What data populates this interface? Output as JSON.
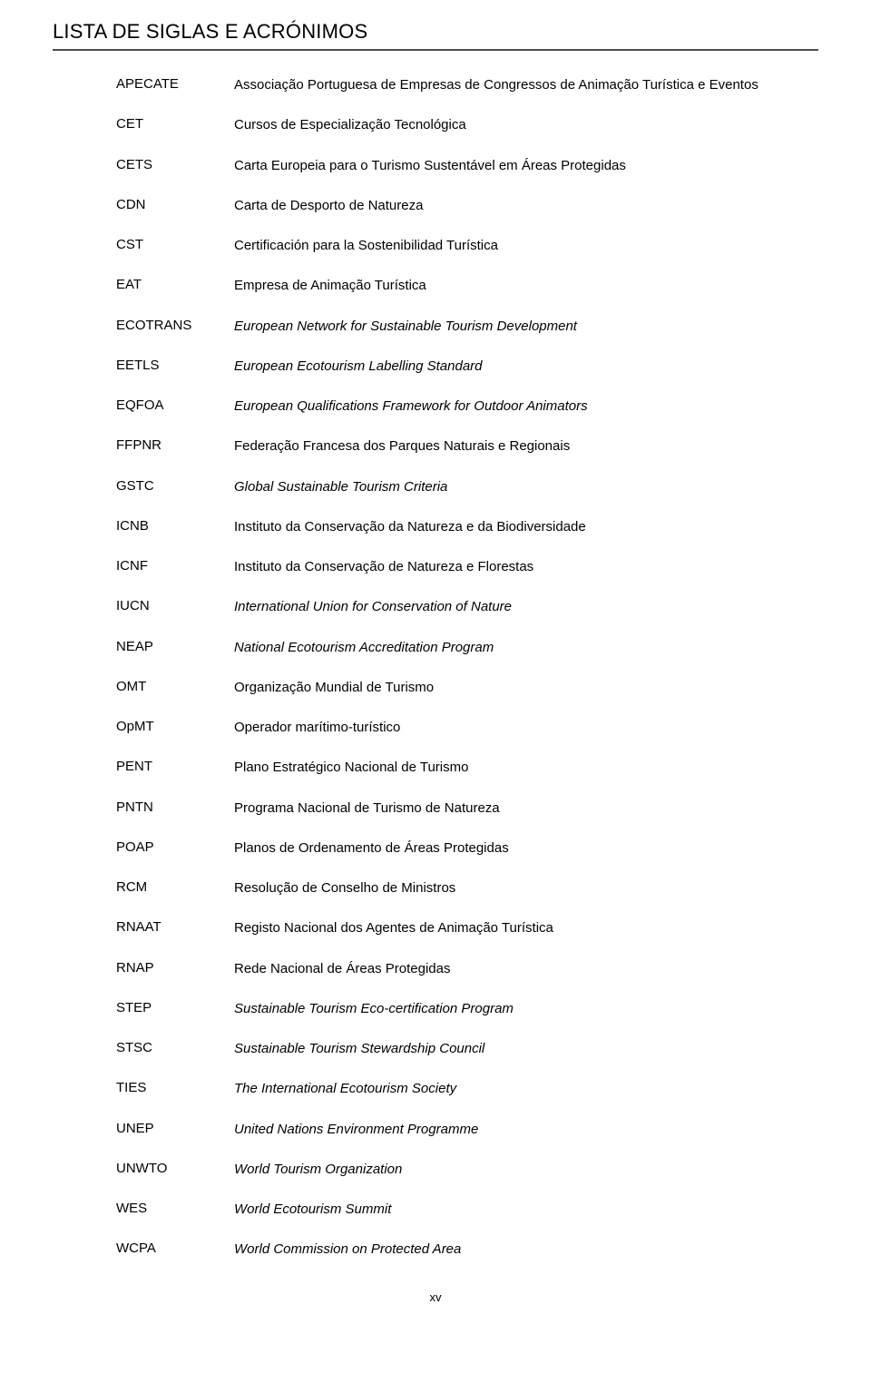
{
  "title": "LISTA DE SIGLAS E ACRÓNIMOS",
  "page_number": "xv",
  "title_rule_color": "#4f4f4f",
  "text_color": "#000000",
  "background": "#ffffff",
  "font_family": "Arial, Helvetica, sans-serif",
  "entries": [
    {
      "acronym": "APECATE",
      "definition": "Associação Portuguesa de Empresas de Congressos de Animação Turística e Eventos",
      "italic": false
    },
    {
      "acronym": "CET",
      "definition": "Cursos de Especialização Tecnológica",
      "italic": false
    },
    {
      "acronym": "CETS",
      "definition": "Carta Europeia para o Turismo Sustentável em Áreas Protegidas",
      "italic": false
    },
    {
      "acronym": "CDN",
      "definition": "Carta de Desporto de Natureza",
      "italic": false
    },
    {
      "acronym": "CST",
      "definition": "Certificación para la Sostenibilidad Turística",
      "italic": false
    },
    {
      "acronym": "EAT",
      "definition": "Empresa de Animação Turística",
      "italic": false
    },
    {
      "acronym": "ECOTRANS",
      "definition": "European Network for Sustainable Tourism Development",
      "italic": true
    },
    {
      "acronym": "EETLS",
      "definition": "European Ecotourism Labelling Standard",
      "italic": true
    },
    {
      "acronym": "EQFOA",
      "definition": "European Qualifications Framework for Outdoor Animators",
      "italic": true
    },
    {
      "acronym": "FFPNR",
      "definition": "Federação Francesa dos Parques Naturais e Regionais",
      "italic": false
    },
    {
      "acronym": "GSTC",
      "definition": "Global Sustainable Tourism Criteria",
      "italic": true
    },
    {
      "acronym": "ICNB",
      "definition": "Instituto da Conservação da Natureza e da Biodiversidade",
      "italic": false
    },
    {
      "acronym": "ICNF",
      "definition": "Instituto da Conservação de Natureza e Florestas",
      "italic": false
    },
    {
      "acronym": "IUCN",
      "definition": "International Union for Conservation of Nature",
      "italic": true
    },
    {
      "acronym": "NEAP",
      "definition": "National Ecotourism Accreditation Program",
      "italic": true
    },
    {
      "acronym": "OMT",
      "definition": "Organização Mundial de Turismo",
      "italic": false
    },
    {
      "acronym": "OpMT",
      "definition": "Operador marítimo-turístico",
      "italic": false
    },
    {
      "acronym": "PENT",
      "definition": "Plano Estratégico Nacional de Turismo",
      "italic": false
    },
    {
      "acronym": "PNTN",
      "definition": "Programa Nacional de Turismo de Natureza",
      "italic": false
    },
    {
      "acronym": "POAP",
      "definition": "Planos de Ordenamento de Áreas Protegidas",
      "italic": false
    },
    {
      "acronym": "RCM",
      "definition": "Resolução de Conselho de Ministros",
      "italic": false
    },
    {
      "acronym": "RNAAT",
      "definition": "Registo Nacional dos Agentes de Animação Turística",
      "italic": false
    },
    {
      "acronym": "RNAP",
      "definition": "Rede Nacional de Áreas Protegidas",
      "italic": false
    },
    {
      "acronym": "STEP",
      "definition": "Sustainable Tourism Eco-certification Program",
      "italic": true
    },
    {
      "acronym": "STSC",
      "definition": "Sustainable Tourism Stewardship Council",
      "italic": true
    },
    {
      "acronym": "TIES",
      "definition": "The International Ecotourism Society",
      "italic": true
    },
    {
      "acronym": "UNEP",
      "definition": "United Nations Environment Programme",
      "italic": true
    },
    {
      "acronym": "UNWTO",
      "definition": "World Tourism Organization",
      "italic": true
    },
    {
      "acronym": "WES",
      "definition": "World Ecotourism Summit",
      "italic": true
    },
    {
      "acronym": "WCPA",
      "definition": "World Commission on Protected Area",
      "italic": true
    }
  ]
}
